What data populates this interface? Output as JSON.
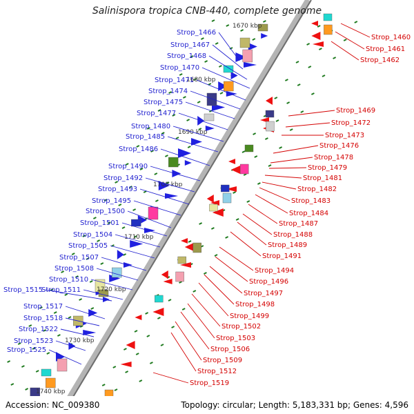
{
  "title": "Salinispora tropica CNB-440, complete genome",
  "footer": {
    "accession": "Accession: NC_009380",
    "info": "Topology: circular; Length: 5,183,331 bp; Genes: 4,596"
  },
  "colors": {
    "left_label": "#1f1fcf",
    "right_label": "#d40000",
    "backbone": "#b4b4b4",
    "backbone_dark": "#6e6e6e",
    "tick_dot": "#1e7a1e",
    "gene_blue": "#2020e0",
    "gene_red": "#ee1111"
  },
  "kbp_labels": [
    "1670 kbp",
    "1680 kbp",
    "1690 kbp",
    "1700 kbp",
    "1710 kbp",
    "1720 kbp",
    "1730 kbp",
    "1740 kbp"
  ],
  "left_labels": [
    "Strop_1466",
    "Strop_1467",
    "Strop_1468",
    "Strop_1470",
    "Strop_1471",
    "Strop_1474",
    "Strop_1475",
    "Strop_1477",
    "Strop_1480",
    "Strop_1485",
    "Strop_1486",
    "Strop_1490",
    "Strop_1492",
    "Strop_1493",
    "Strop_1495",
    "Strop_1500",
    "Strop_1501",
    "Strop_1504",
    "Strop_1505",
    "Strop_1507",
    "Strop_1508",
    "Strop_1510",
    "Strop_1515",
    "Strop_1511",
    "Strop_1517",
    "Strop_1518",
    "Strop_1522",
    "Strop_1523",
    "Strop_1525"
  ],
  "right_labels": [
    "Strop_1460",
    "Strop_1461",
    "Strop_1462",
    "Strop_1469",
    "Strop_1472",
    "Strop_1473",
    "Strop_1476",
    "Strop_1478",
    "Strop_1479",
    "Strop_1481",
    "Strop_1482",
    "Strop_1483",
    "Strop_1484",
    "Strop_1487",
    "Strop_1488",
    "Strop_1489",
    "Strop_1491",
    "Strop_1494",
    "Strop_1496",
    "Strop_1497",
    "Strop_1498",
    "Strop_1499",
    "Strop_1502",
    "Strop_1503",
    "Strop_1506",
    "Strop_1509",
    "Strop_1512",
    "Strop_1519"
  ]
}
